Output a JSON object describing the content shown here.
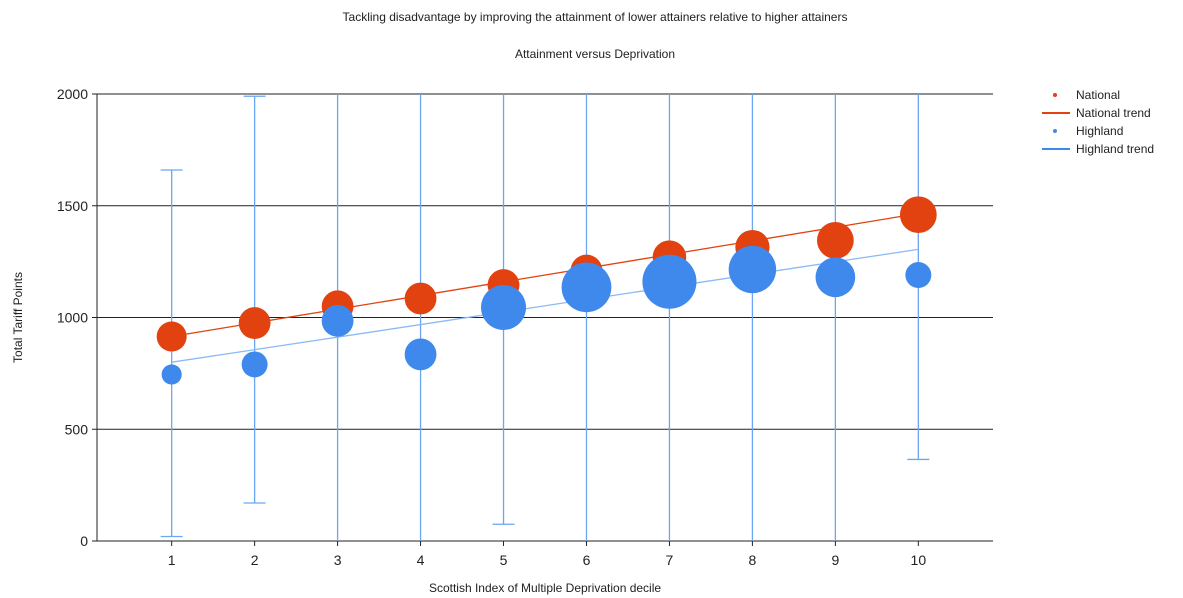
{
  "chart_data": {
    "type": "scatter",
    "title": "Tackling disadvantage by improving the attainment of lower attainers relative to higher attainers",
    "subtitle": "Attainment versus Deprivation",
    "xlabel": "Scottish Index of Multiple Deprivation decile",
    "ylabel": "Total Tariff Points",
    "xlim": [
      0.1,
      10.9
    ],
    "ylim": [
      0,
      2000
    ],
    "x_ticks": [
      "1",
      "2",
      "3",
      "4",
      "5",
      "6",
      "7",
      "8",
      "9",
      "10"
    ],
    "y_ticks": [
      "0",
      "500",
      "1000",
      "1500",
      "2000"
    ],
    "grid": "horizontal",
    "legend_position": "top-right",
    "series": [
      {
        "name": "National",
        "kind": "bubble",
        "color": "#e2420f",
        "x": [
          1,
          2,
          3,
          4,
          5,
          6,
          7,
          8,
          9,
          10
        ],
        "y": [
          915,
          975,
          1050,
          1085,
          1145,
          1210,
          1270,
          1315,
          1345,
          1460
        ],
        "bubble_size": [
          4,
          4.5,
          4.5,
          4.5,
          4.5,
          4.5,
          5,
          5.2,
          6,
          6
        ]
      },
      {
        "name": "National trend",
        "kind": "line",
        "color": "#e2420f",
        "x": [
          1,
          10
        ],
        "y": [
          915,
          1465
        ]
      },
      {
        "name": "Highland",
        "kind": "bubble",
        "color": "#3f89ec",
        "x": [
          1,
          2,
          3,
          4,
          5,
          6,
          7,
          8,
          9,
          10
        ],
        "y": [
          745,
          790,
          985,
          835,
          1045,
          1135,
          1160,
          1215,
          1180,
          1190
        ],
        "bubble_size": [
          1.8,
          3,
          4.5,
          4.5,
          9,
          11,
          13,
          10,
          7,
          3
        ],
        "error_low": [
          20,
          170,
          0,
          0,
          75,
          0,
          0,
          0,
          0,
          365
        ],
        "error_high": [
          1660,
          1990,
          2000,
          2000,
          2000,
          2000,
          2000,
          2000,
          2000,
          2000
        ]
      },
      {
        "name": "Highland trend",
        "kind": "line",
        "color": "#3f89ec",
        "x": [
          1,
          10
        ],
        "y": [
          800,
          1305
        ]
      }
    ]
  }
}
